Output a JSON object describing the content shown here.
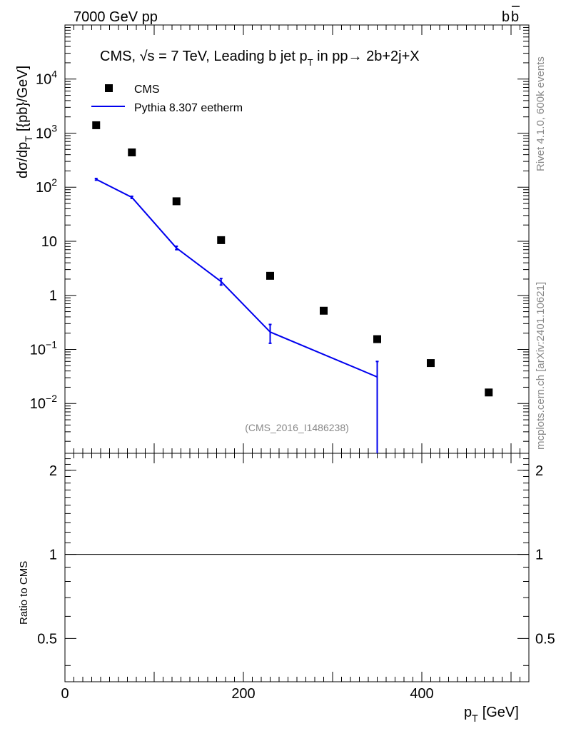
{
  "header": {
    "left": "7000 GeV pp",
    "right": "b",
    "right_bar": "b"
  },
  "side_labels": {
    "rivet": "Rivet 4.1.0,  600k events",
    "mcplots": "mcplots.cern.ch [arXiv:2401.10621]"
  },
  "colors": {
    "mc": "#0000ee",
    "data": "#000000",
    "grey": "#888888"
  },
  "chart_data": {
    "type": "scatter",
    "title_prefix": "CMS, ",
    "title_sqrt": "√s",
    "title_main": " = 7 TeV, Leading b jet p",
    "title_sub": "T",
    "title_rest": " in pp",
    "title_arrow": "→",
    "title_final": "  2b+2j+X",
    "ylabel_main": "dσ/dp",
    "ylabel_sub": "T",
    "ylabel_units": "[{pb}/GeV]",
    "xlabel_main": "p",
    "xlabel_sub": "T",
    "xlabel_units": "[GeV]",
    "watermark": "(CMS_2016_I1486238)",
    "ratio_ylabel": "Ratio to CMS",
    "xlim": [
      0,
      520
    ],
    "ylim": [
      0.0012,
      100000
    ],
    "ratio_ylim": [
      0.35,
      2.3
    ],
    "x_ticks": [
      "0",
      "200",
      "400"
    ],
    "x_tick_values": [
      0,
      200,
      400
    ],
    "y_ticks": [
      {
        "value": 10000,
        "base": "10",
        "exp": "4"
      },
      {
        "value": 1000,
        "base": "10",
        "exp": "3"
      },
      {
        "value": 100,
        "base": "10",
        "exp": "2"
      },
      {
        "value": 10,
        "base": "10",
        "exp": ""
      },
      {
        "value": 1,
        "base": "1",
        "exp": ""
      },
      {
        "value": 0.1,
        "base": "10",
        "exp": "−1"
      },
      {
        "value": 0.01,
        "base": "10",
        "exp": "−2"
      }
    ],
    "ratio_ticks": [
      {
        "value": 2,
        "label": "2"
      },
      {
        "value": 1,
        "label": "1"
      },
      {
        "value": 0.5,
        "label": "0.5"
      }
    ],
    "legend": [
      {
        "name": "CMS",
        "kind": "marker"
      },
      {
        "name": "Pythia 8.307 eetherm",
        "kind": "line"
      }
    ],
    "series": [
      {
        "name": "CMS",
        "x": [
          35,
          75,
          125,
          175,
          230,
          290,
          350,
          410,
          475
        ],
        "y": [
          1400,
          440,
          55,
          10.5,
          2.3,
          0.52,
          0.155,
          0.056,
          0.016
        ]
      },
      {
        "name": "Pythia 8.307 eetherm",
        "x": [
          35,
          75,
          125,
          175,
          230,
          350
        ],
        "y": [
          140,
          65,
          7.5,
          1.8,
          0.21,
          0.031
        ],
        "err_low": [
          135,
          62,
          7.0,
          1.55,
          0.13,
          0.0012
        ],
        "err_high": [
          145,
          68,
          8.1,
          2.05,
          0.29,
          0.06
        ]
      }
    ]
  }
}
